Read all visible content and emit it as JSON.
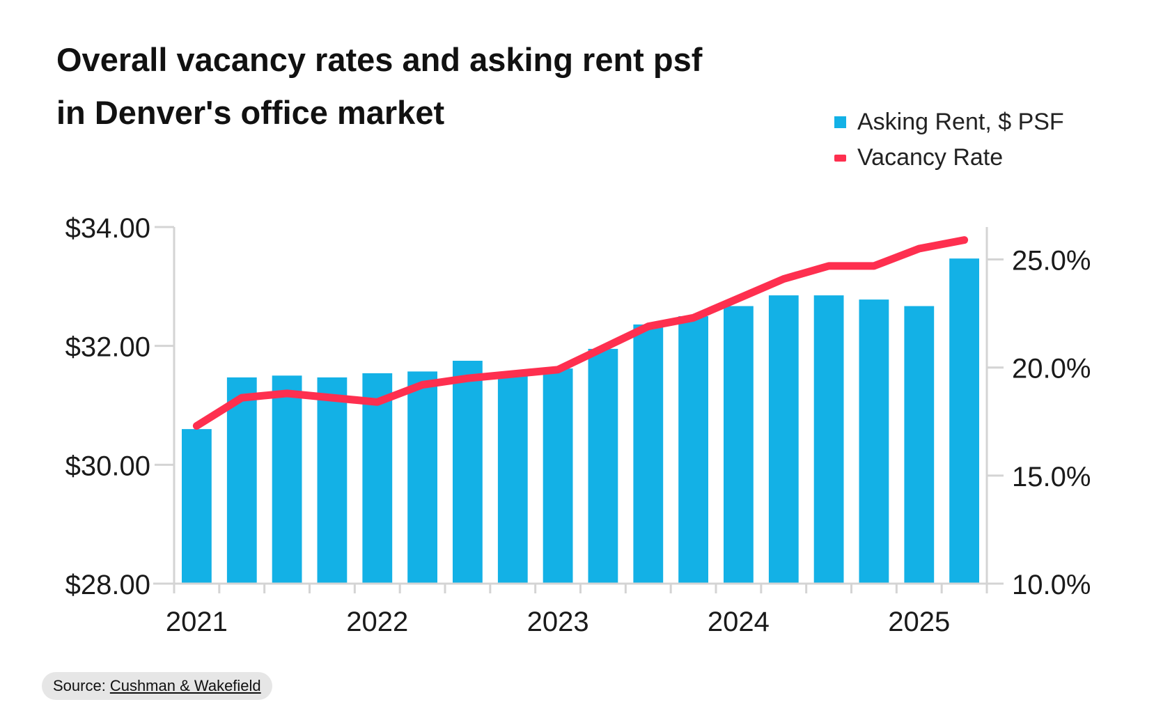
{
  "title": {
    "line1": "Overall vacancy rates and asking rent psf",
    "line2": "in Denver's office market"
  },
  "legend": [
    {
      "label": "Asking Rent, $ PSF",
      "color": "#13b1e6"
    },
    {
      "label": "Vacancy Rate",
      "color": "#fe2f4f"
    }
  ],
  "source": {
    "prefix": "Source:",
    "link_text": "Cushman & Wakefield"
  },
  "chart_data": {
    "type": "bar+line",
    "title": "Overall vacancy rates and asking rent psf in Denver's office market",
    "categories": [
      "2021 Q1",
      "2021 Q2",
      "2021 Q3",
      "2021 Q4",
      "2022 Q1",
      "2022 Q2",
      "2022 Q3",
      "2022 Q4",
      "2023 Q1",
      "2023 Q2",
      "2023 Q3",
      "2023 Q4",
      "2024 Q1",
      "2024 Q2",
      "2024 Q3",
      "2024 Q4",
      "2025 Q1",
      "2025 Q2"
    ],
    "x_tick_labels": [
      "2021",
      "2022",
      "2023",
      "2024",
      "2025"
    ],
    "series": [
      {
        "name": "Asking Rent, $ PSF",
        "type": "bar",
        "axis": "left",
        "color": "#13b1e6",
        "values": [
          30.6,
          31.47,
          31.5,
          31.47,
          31.54,
          31.57,
          31.75,
          31.55,
          31.62,
          31.95,
          32.36,
          32.5,
          32.67,
          32.85,
          32.85,
          32.78,
          32.67,
          33.47
        ]
      },
      {
        "name": "Vacancy Rate",
        "type": "line",
        "axis": "right",
        "color": "#fe2f4f",
        "values": [
          17.3,
          18.6,
          18.8,
          18.6,
          18.4,
          19.2,
          19.5,
          19.7,
          19.9,
          20.9,
          21.9,
          22.3,
          23.2,
          24.1,
          24.7,
          24.7,
          25.5,
          25.9
        ]
      }
    ],
    "y_left": {
      "ylim": [
        28,
        34
      ],
      "ticks": [
        28,
        30,
        32,
        34
      ],
      "tick_labels": [
        "$28.00",
        "$30.00",
        "$32.00",
        "$34.00"
      ]
    },
    "y_right": {
      "ylim": [
        10,
        26.5
      ],
      "ticks": [
        10,
        15,
        20,
        25
      ],
      "tick_labels": [
        "10.0%",
        "15.0%",
        "20.0%",
        "25.0%"
      ]
    },
    "grid": false
  }
}
